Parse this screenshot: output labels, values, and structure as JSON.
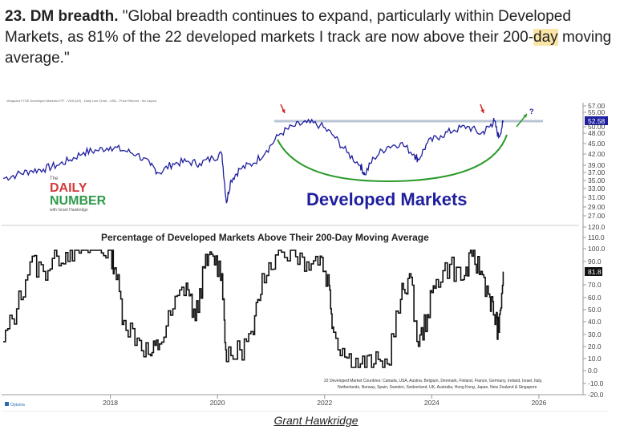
{
  "article": {
    "heading": "23. DM breadth.",
    "quote_part1": " \"Global breadth continues to expand, particularly within Developed Markets, as 81% of the 22 developed markets I track are now above their 200-",
    "quote_highlight": "day",
    "quote_part2": " moving average.\""
  },
  "chart_data": [
    {
      "type": "line",
      "title": "Vanguard FTSE Developed Markets ETF - VEA (US) - Daily Line Chart - USD - Price Returns - No Layout",
      "overlay_text": "Developed Markets",
      "logo_lines": [
        "The",
        "DAILY",
        "NUMBER",
        "with Grant Hawkridge"
      ],
      "last_value_label": "52.58",
      "annotation_mark": "?",
      "ytick_labels": [
        "57.00",
        "55.00",
        "52.58",
        "50.00",
        "48.00",
        "45.00",
        "42.00",
        "39.00",
        "37.00",
        "35.00",
        "33.00",
        "31.00",
        "29.00",
        "27.00"
      ],
      "resistance_level": 52.9,
      "colors": {
        "line": "#1f1f9e",
        "arc": "#2a9a2a",
        "red_arrow": "#d42020",
        "green_arrow": "#2a9a2a",
        "resistance": "#b9c4d4",
        "label_bg": "#1f1f9e"
      },
      "x_dates": [
        "2016-01",
        "2016-04",
        "2016-07",
        "2016-10",
        "2017-01",
        "2017-04",
        "2017-07",
        "2017-10",
        "2018-01",
        "2018-04",
        "2018-07",
        "2018-10",
        "2018-12",
        "2019-03",
        "2019-06",
        "2019-09",
        "2019-12",
        "2020-02",
        "2020-03",
        "2020-04",
        "2020-06",
        "2020-09",
        "2020-12",
        "2021-03",
        "2021-06",
        "2021-09",
        "2021-12",
        "2022-03",
        "2022-06",
        "2022-09",
        "2022-10",
        "2022-12",
        "2023-03",
        "2023-06",
        "2023-09",
        "2023-10",
        "2023-12",
        "2024-03",
        "2024-06",
        "2024-09",
        "2024-12",
        "2025-02",
        "2025-03",
        "2025-04",
        "2025-05"
      ],
      "y_values": [
        37.5,
        38.5,
        39.5,
        40.0,
        41.0,
        42.5,
        44.5,
        45.0,
        46.0,
        45.0,
        44.0,
        41.0,
        39.0,
        41.5,
        42.0,
        41.5,
        43.0,
        44.0,
        31.0,
        37.0,
        40.0,
        41.5,
        45.0,
        49.5,
        51.5,
        52.5,
        51.8,
        49.0,
        44.5,
        41.0,
        38.5,
        43.0,
        46.0,
        47.0,
        44.0,
        42.5,
        47.0,
        49.0,
        50.5,
        51.5,
        49.5,
        51.5,
        53.0,
        48.5,
        52.58
      ]
    },
    {
      "type": "line",
      "title": "Percentage of Developed Markets Above Their 200-Day Moving Average",
      "last_value_label": "81.8",
      "ytick_labels": [
        "120.0",
        "110.0",
        "100.0",
        "90.0",
        "81.8",
        "70.0",
        "60.0",
        "50.0",
        "40.0",
        "30.0",
        "20.0",
        "10.0",
        "0.0",
        "-10.0",
        "-20.0"
      ],
      "note_lines": [
        "22 Developed Market Countries: Canada, USA, Austria, Belgium, Denmark, Finland, France, Germany, Ireland, Israel, Italy,",
        "Netherlands, Norway, Spain, Sweden, Switzerland, UK, Australia, Hong Kong, Japan, New Zealand & Singapore"
      ],
      "xtick_labels": [
        "2018",
        "2020",
        "2022",
        "2024",
        "2026"
      ],
      "source_label": "Optuma",
      "colors": {
        "line": "#111111",
        "label_bg": "#111111"
      },
      "x_dates": [
        "2016-01",
        "2016-04",
        "2016-07",
        "2016-10",
        "2017-01",
        "2017-04",
        "2017-07",
        "2017-10",
        "2018-01",
        "2018-02",
        "2018-04",
        "2018-07",
        "2018-10",
        "2018-12",
        "2019-03",
        "2019-06",
        "2019-08",
        "2019-10",
        "2019-12",
        "2020-02",
        "2020-03",
        "2020-06",
        "2020-09",
        "2020-11",
        "2021-02",
        "2021-06",
        "2021-09",
        "2021-12",
        "2022-02",
        "2022-03",
        "2022-06",
        "2022-09",
        "2022-12",
        "2023-03",
        "2023-06",
        "2023-08",
        "2023-10",
        "2023-12",
        "2024-02",
        "2024-05",
        "2024-08",
        "2024-10",
        "2024-12",
        "2025-02",
        "2025-03",
        "2025-04",
        "2025-05"
      ],
      "y_values": [
        22,
        50,
        90,
        82,
        95,
        100,
        100,
        100,
        100,
        85,
        40,
        25,
        10,
        20,
        50,
        72,
        40,
        85,
        95,
        80,
        5,
        15,
        28,
        80,
        96,
        100,
        90,
        95,
        70,
        30,
        8,
        3,
        3,
        3,
        58,
        80,
        18,
        45,
        75,
        88,
        75,
        95,
        82,
        60,
        45,
        30,
        81.8
      ]
    }
  ]
}
